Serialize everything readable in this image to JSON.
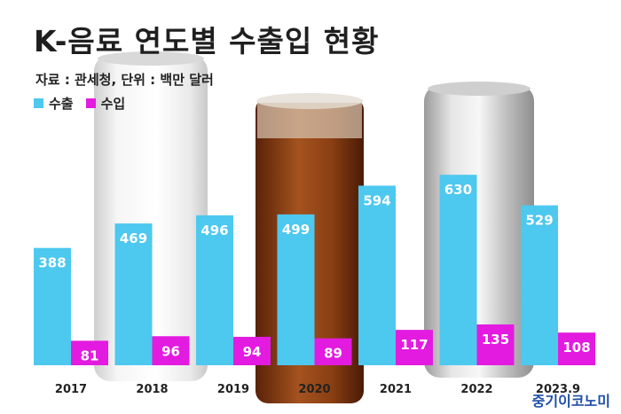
{
  "title": "K-음료 연도별 수출입 현황",
  "source": "자료 : 관세청, 단위 : 백만 달러",
  "brand": "중기이코노미",
  "colors": {
    "export": "#4dc8ef",
    "import": "#e31be0",
    "bar_label": "#ffffff",
    "axis_label": "#222222"
  },
  "chart_data": {
    "type": "bar",
    "categories": [
      "2017",
      "2018",
      "2019",
      "2020",
      "2021",
      "2022",
      "2023.9"
    ],
    "series": [
      {
        "name": "수출",
        "values": [
          388,
          469,
          496,
          499,
          594,
          630,
          529
        ]
      },
      {
        "name": "수입",
        "values": [
          81,
          96,
          94,
          89,
          117,
          135,
          108
        ]
      }
    ],
    "legend": "top-left",
    "grid": false,
    "ylim": [
      0,
      690
    ]
  }
}
